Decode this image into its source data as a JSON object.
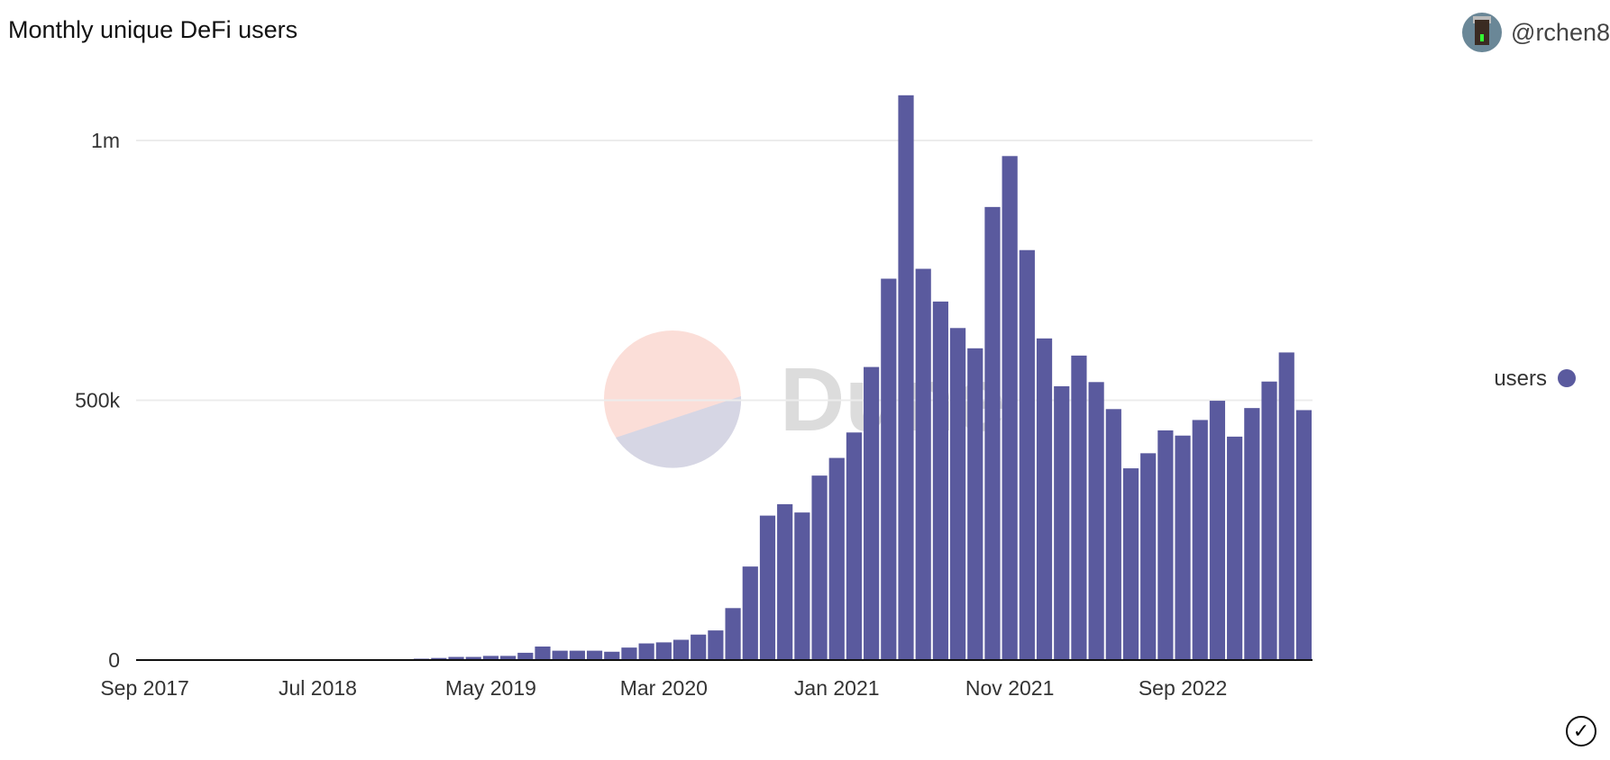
{
  "header": {
    "title": "Monthly unique DeFi users",
    "author": "@rchen8",
    "avatar_icon": "user-avatar"
  },
  "watermark": {
    "text": "Dune"
  },
  "check_icon": "check-circle-icon",
  "chart_data": {
    "type": "bar",
    "title": "Monthly unique DeFi users",
    "xlabel": "",
    "ylabel": "",
    "ylim": [
      0,
      1100000
    ],
    "yticks": [
      {
        "value": 0,
        "label": "0"
      },
      {
        "value": 500000,
        "label": "500k"
      },
      {
        "value": 1000000,
        "label": "1m"
      }
    ],
    "xtick_labels": [
      "Sep 2017",
      "Jul 2018",
      "May 2019",
      "Mar 2020",
      "Jan 2021",
      "Nov 2021",
      "Sep 2022"
    ],
    "grid": true,
    "legend": {
      "placement": "right",
      "entries": [
        "users"
      ]
    },
    "color": "#5a5a9e",
    "categories": [
      "2017-09",
      "2017-10",
      "2017-11",
      "2017-12",
      "2018-01",
      "2018-02",
      "2018-03",
      "2018-04",
      "2018-05",
      "2018-06",
      "2018-07",
      "2018-08",
      "2018-09",
      "2018-10",
      "2018-11",
      "2018-12",
      "2019-01",
      "2019-02",
      "2019-03",
      "2019-04",
      "2019-05",
      "2019-06",
      "2019-07",
      "2019-08",
      "2019-09",
      "2019-10",
      "2019-11",
      "2019-12",
      "2020-01",
      "2020-02",
      "2020-03",
      "2020-04",
      "2020-05",
      "2020-06",
      "2020-07",
      "2020-08",
      "2020-09",
      "2020-10",
      "2020-11",
      "2020-12",
      "2021-01",
      "2021-02",
      "2021-03",
      "2021-04",
      "2021-05",
      "2021-06",
      "2021-07",
      "2021-08",
      "2021-09",
      "2021-10",
      "2021-11",
      "2021-12",
      "2022-01",
      "2022-02",
      "2022-03",
      "2022-04",
      "2022-05",
      "2022-06",
      "2022-07",
      "2022-08",
      "2022-09",
      "2022-10",
      "2022-11",
      "2022-12",
      "2023-01",
      "2023-02",
      "2023-03",
      "2023-04"
    ],
    "series": [
      {
        "name": "users",
        "values": [
          0,
          0,
          0,
          0,
          0,
          0,
          0,
          0,
          0,
          0,
          0,
          0,
          0,
          0,
          0,
          0,
          2000,
          4000,
          6000,
          6000,
          8000,
          8000,
          14000,
          26000,
          18000,
          18000,
          18000,
          16000,
          24000,
          32000,
          34000,
          39000,
          49000,
          57000,
          100000,
          180000,
          278000,
          300000,
          284000,
          355000,
          389000,
          438000,
          564000,
          734000,
          1087000,
          753000,
          690000,
          639000,
          600000,
          872000,
          970000,
          789000,
          619000,
          527000,
          586000,
          535000,
          483000,
          369000,
          398000,
          442000,
          432000,
          462000,
          499000,
          430000,
          485000,
          536000,
          592000,
          481000
        ]
      }
    ]
  }
}
